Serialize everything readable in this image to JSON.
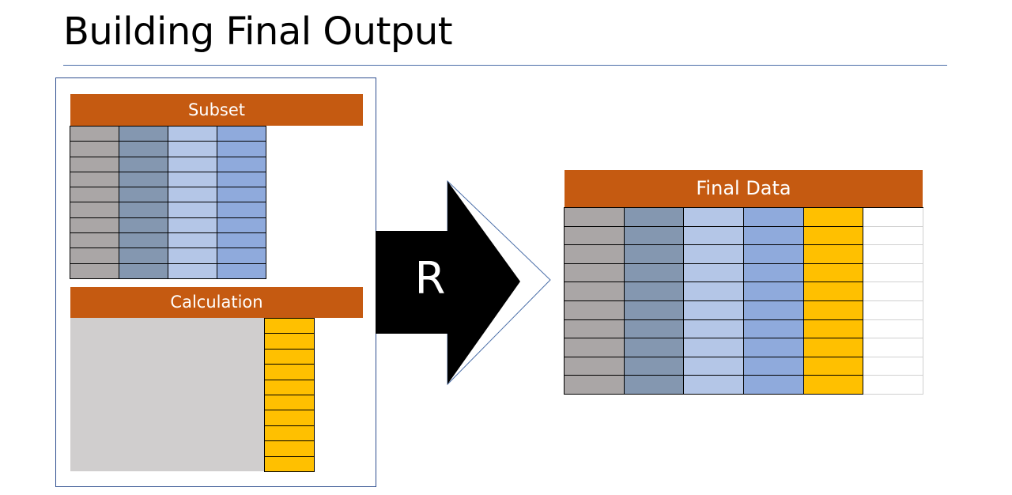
{
  "slide": {
    "title": "Building Final Output"
  },
  "colors": {
    "header_orange": "#c55a11",
    "grey": "#aaa6a6",
    "slate_blue": "#8497b0",
    "light_blue": "#b4c6e7",
    "mid_blue": "#8faadc",
    "gold": "#ffc000",
    "calc_grey": "#d0cece",
    "white": "#ffffff",
    "frame_blue": "#2f4f8f"
  },
  "subset": {
    "label": "Subset",
    "rows": 10,
    "columns": [
      "grey",
      "slate_blue",
      "light_blue",
      "mid_blue"
    ]
  },
  "calculation": {
    "label": "Calculation",
    "rows": 10,
    "columns": [
      "gold"
    ]
  },
  "transform": {
    "label": "R"
  },
  "final": {
    "label": "Final Data",
    "rows": 10,
    "columns": [
      "grey",
      "slate_blue",
      "light_blue",
      "mid_blue",
      "gold",
      "white"
    ]
  }
}
